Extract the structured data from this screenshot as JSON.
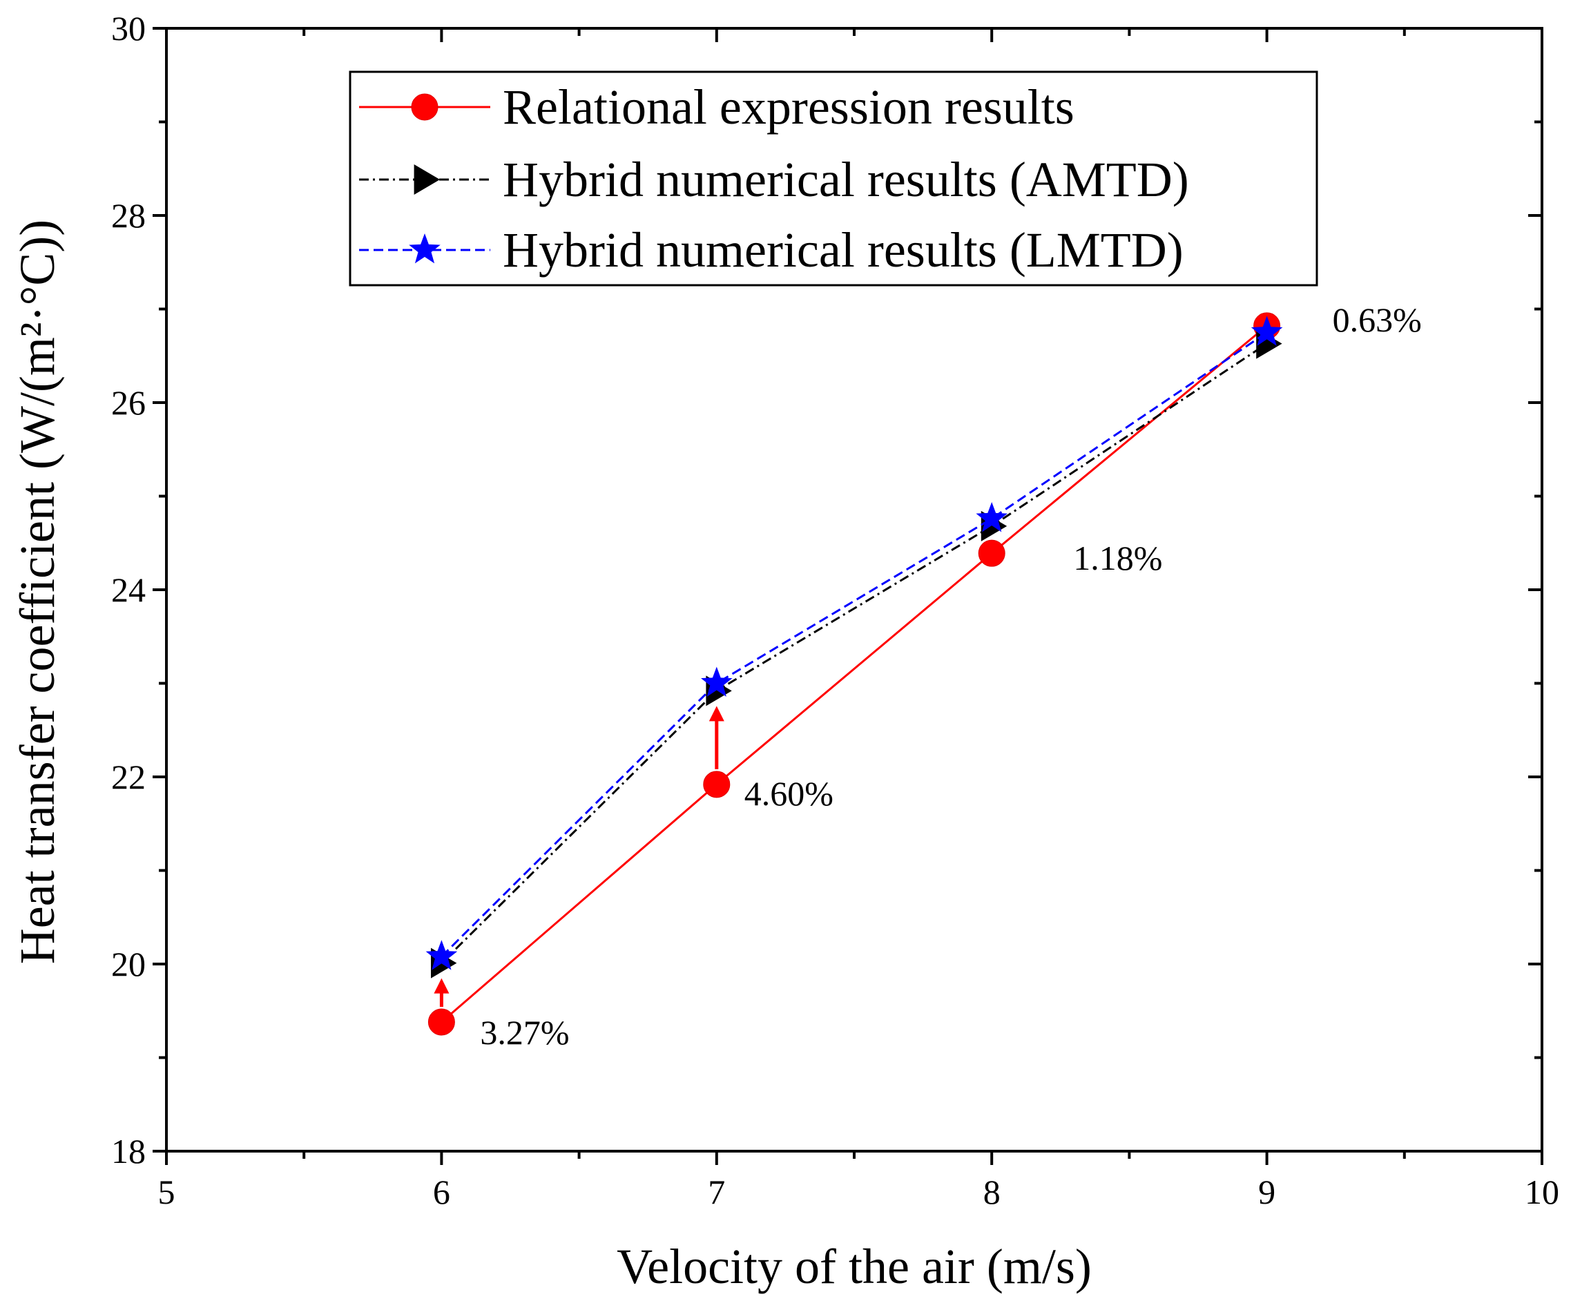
{
  "chart_data": {
    "type": "line",
    "xlabel": "Velocity of the air (m/s)",
    "ylabel": "Heat transfer coefficient (W/(m²·°C))",
    "xlim": [
      5,
      10
    ],
    "ylim": [
      18,
      30
    ],
    "xticks": [
      "5",
      "6",
      "7",
      "8",
      "9",
      "10"
    ],
    "yticks": [
      "18",
      "20",
      "22",
      "24",
      "26",
      "28",
      "30"
    ],
    "grid": false,
    "legend_position": "top-center",
    "x": [
      6,
      7,
      8,
      9
    ],
    "series": [
      {
        "name": "Relational expression results",
        "values": [
          19.38,
          21.92,
          24.39,
          26.82
        ],
        "color": "#ff0000",
        "marker": "circle",
        "line": "solid"
      },
      {
        "name": "Hybrid numerical results (AMTD)",
        "values": [
          20.01,
          22.92,
          24.68,
          26.63
        ],
        "color": "#000000",
        "marker": "triangle-right",
        "line": "dash-dot"
      },
      {
        "name": "Hybrid numerical results (LMTD)",
        "values": [
          20.08,
          23.0,
          24.76,
          26.75
        ],
        "color": "#0000ff",
        "marker": "star",
        "line": "dashed"
      }
    ],
    "annotations": [
      {
        "text": "3.27%",
        "x": 6,
        "y": 19.38
      },
      {
        "text": "4.60%",
        "x": 7,
        "y": 21.92
      },
      {
        "text": "1.18%",
        "x": 8,
        "y": 24.39
      },
      {
        "text": "0.63%",
        "x": 9,
        "y": 26.82
      }
    ],
    "arrow_color": "#ff0000"
  }
}
